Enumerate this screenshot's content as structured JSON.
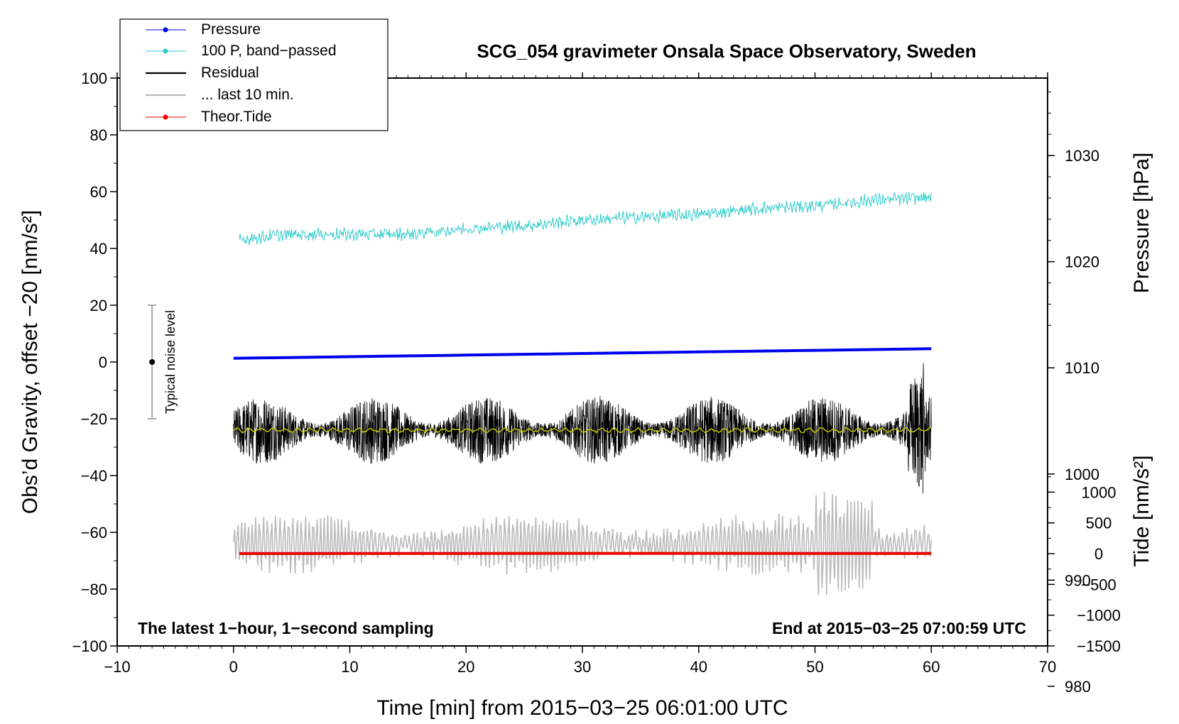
{
  "chart_data": {
    "type": "line",
    "title": "SCG_054 gravimeter Onsala Space Observatory, Sweden",
    "xlabel": "Time [min] from 2015−03−25 06:01:00 UTC",
    "ylabel": "Obs’d Gravity, offset −20 [nm/s²]",
    "ylabel_pressure": "Pressure [hPa]",
    "ylabel_tide": "Tide [nm/s²]",
    "footer_left": "The latest 1−hour, 1−second sampling",
    "footer_right": "End at 2015−03−25 07:00:59 UTC",
    "noise_label": "Typical noise level",
    "xlim": [
      -10,
      70
    ],
    "ylim": [
      -100,
      100
    ],
    "pressure_lim": [
      983.8,
      1037.3
    ],
    "tide_lim": [
      -1500,
      1500
    ],
    "x_ticks": [
      -10,
      0,
      10,
      20,
      30,
      40,
      50,
      60,
      70
    ],
    "x_tick_labels": [
      "−10",
      "0",
      "10",
      "20",
      "30",
      "40",
      "50",
      "60",
      "70"
    ],
    "y_ticks": [
      -100,
      -80,
      -60,
      -40,
      -20,
      0,
      20,
      40,
      60,
      80,
      100
    ],
    "y_tick_labels": [
      "−100",
      "−80",
      "−60",
      "−40",
      "−20",
      "0",
      "20",
      "40",
      "60",
      "80",
      "100"
    ],
    "pressure_ticks": [
      980,
      990,
      1000,
      1010,
      1020,
      1030
    ],
    "pressure_tick_labels": [
      "980",
      "990",
      "1000",
      "1010",
      "1020",
      "1030"
    ],
    "tide_ticks": [
      -1500,
      -1000,
      -500,
      0,
      500,
      1000
    ],
    "tide_tick_labels": [
      "−1500",
      "−1000",
      "−500",
      "0",
      "500",
      "1000"
    ],
    "noise_bar": {
      "x": -7,
      "center": 0,
      "low": -20,
      "high": 20
    },
    "legend": [
      {
        "label": "Pressure",
        "color": "#0000ee",
        "marker": true
      },
      {
        "label": "100 P, band−passed",
        "color": "#33cccc",
        "marker": true
      },
      {
        "label": "Residual",
        "color": "#000000",
        "marker": false
      },
      {
        "label": "... last 10 min.",
        "color": "#bbbbbb",
        "marker": false
      },
      {
        "label": "Theor.Tide",
        "color": "#ee0000",
        "marker": true
      }
    ],
    "series": [
      {
        "name": "Pressure",
        "axis": "pressure_hPa",
        "color": "#0000ee",
        "x": [
          0,
          10,
          20,
          30,
          40,
          50,
          60
        ],
        "values": [
          1010.9,
          1011.05,
          1011.2,
          1011.35,
          1011.5,
          1011.65,
          1011.8
        ]
      },
      {
        "name": "100 P, band−passed",
        "axis": "gravity",
        "color": "#33cccc",
        "x": [
          0,
          5,
          10,
          15,
          20,
          25,
          30,
          35,
          40,
          45,
          50,
          55,
          60
        ],
        "values": [
          43,
          45,
          45,
          45,
          47,
          48,
          50,
          51,
          52,
          54,
          55,
          57,
          58
        ],
        "noise_amplitude": 2.5
      },
      {
        "name": "Residual",
        "axis": "gravity",
        "color": "#000000",
        "x": [
          0,
          60
        ],
        "values": [
          -24,
          -24
        ],
        "noise_amplitude": 12
      },
      {
        "name": "Residual mean",
        "axis": "gravity",
        "color": "#cccc00",
        "x": [
          0,
          60
        ],
        "values": [
          -24,
          -24
        ]
      },
      {
        "name": "... last 10 min.",
        "axis": "gravity",
        "color": "#bbbbbb",
        "x": [
          0,
          60
        ],
        "values": [
          -64,
          -64
        ],
        "noise_amplitude": 12
      },
      {
        "name": "Theor.Tide",
        "axis": "tide_nms2",
        "color": "#ee0000",
        "x": [
          0,
          10,
          20,
          30,
          40,
          50,
          60
        ],
        "values": [
          1,
          3,
          4,
          5,
          5,
          4,
          2
        ]
      }
    ]
  }
}
